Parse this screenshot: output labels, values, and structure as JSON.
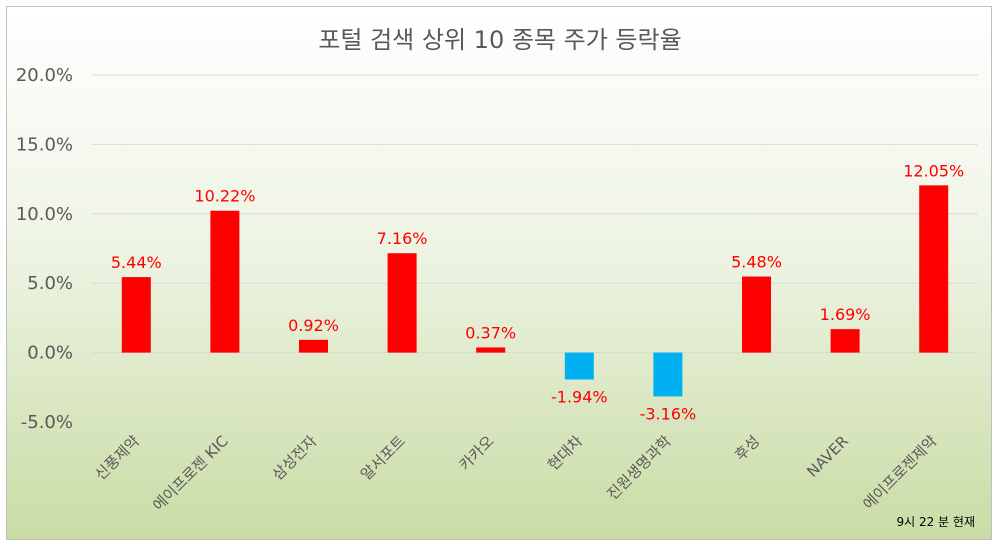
{
  "chart_data": {
    "type": "bar",
    "title": "포털 검색 상위 10 종목 주가 등락율",
    "categories": [
      "신풍제약",
      "에이프로젠 KIC",
      "삼성전자",
      "알서포트",
      "카카오",
      "현대차",
      "진원생명과학",
      "후성",
      "NAVER",
      "에이프로젠제약"
    ],
    "values": [
      5.44,
      10.22,
      0.92,
      7.16,
      0.37,
      -1.94,
      -3.16,
      5.48,
      1.69,
      12.05
    ],
    "data_labels": [
      "5.44%",
      "10.22%",
      "0.92%",
      "7.16%",
      "0.37%",
      "-1.94%",
      "-3.16%",
      "5.48%",
      "1.69%",
      "12.05%"
    ],
    "y_ticks": [
      20,
      15,
      10,
      5,
      0,
      -5
    ],
    "y_tick_labels": [
      "20.0%",
      "15.0%",
      "10.0%",
      "5.0%",
      "0.0%",
      "-5.0%"
    ],
    "ylim": [
      -5,
      20
    ],
    "xlabel": "",
    "ylabel": "",
    "grid": true,
    "colors": {
      "positive": "#ff0000",
      "negative": "#00b0f0",
      "label": "#ff0000",
      "axis_text": "#595959",
      "gridline": "#d9d9d9"
    },
    "annotation": "9시 22 분 현재"
  }
}
